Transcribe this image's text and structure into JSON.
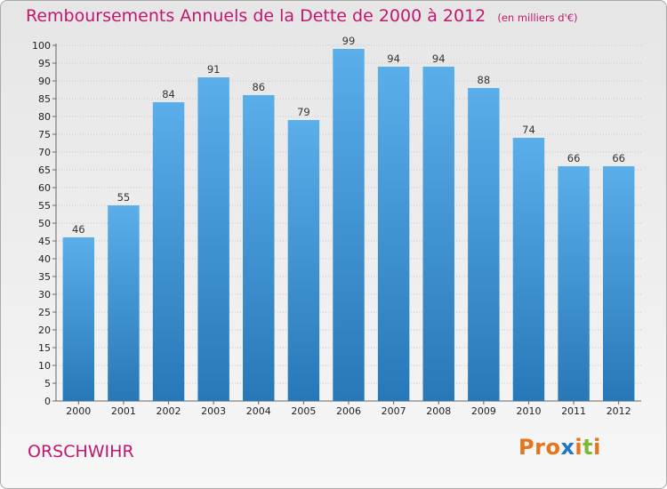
{
  "page": {
    "title": "Remboursements Annuels de la Dette de 2000 à 2012",
    "subtitle": "(en milliers d'€)",
    "commune": "ORSCHWIHR",
    "logo": "Proxiti",
    "logo_colors": [
      "#e8731c",
      "#e8731c",
      "#e8731c",
      "#1f77c4",
      "#e8731c",
      "#7cb833",
      "#e8731c"
    ]
  },
  "colors": {
    "accent_text": "#c0186e",
    "bar_top": "#5aaeea",
    "bar_bottom": "#2778b8"
  },
  "chart_data": {
    "type": "bar",
    "title": "Remboursements Annuels de la Dette de 2000 à 2012",
    "subtitle": "(en milliers d'€)",
    "categories": [
      "2000",
      "2001",
      "2002",
      "2003",
      "2004",
      "2005",
      "2006",
      "2007",
      "2008",
      "2009",
      "2010",
      "2011",
      "2012"
    ],
    "values": [
      46,
      55,
      84,
      91,
      86,
      79,
      99,
      94,
      94,
      88,
      74,
      66,
      66
    ],
    "ylim": [
      0,
      100
    ],
    "ytick_step": 5,
    "grid": true,
    "show_value_labels": true
  }
}
